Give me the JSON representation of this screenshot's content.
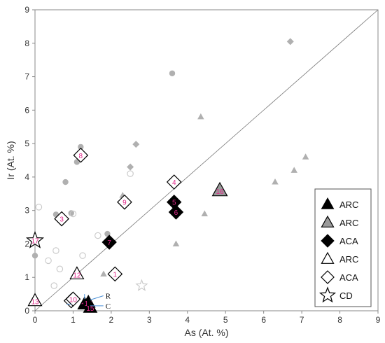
{
  "chart_data": {
    "type": "scatter",
    "xlabel": "As (At. %)",
    "ylabel": "Ir (At. %)",
    "xlim": [
      0,
      9
    ],
    "ylim": [
      0,
      9
    ],
    "xticks": [
      "0",
      "1",
      "2",
      "3",
      "4",
      "5",
      "6",
      "7",
      "8",
      "9"
    ],
    "yticks": [
      "0",
      "1",
      "2",
      "3",
      "4",
      "5",
      "6",
      "7",
      "8",
      "9"
    ],
    "grid": false,
    "reference_line": {
      "x": [
        0,
        9
      ],
      "y": [
        0,
        9
      ]
    },
    "legend": {
      "placement": "bottom-right",
      "entries": [
        {
          "label": "ARC",
          "marker": "triangle",
          "style": "filled-black"
        },
        {
          "label": "ARC",
          "marker": "triangle",
          "style": "filled-gray"
        },
        {
          "label": "ACA",
          "marker": "diamond",
          "style": "filled-black"
        },
        {
          "label": "ARC",
          "marker": "triangle",
          "style": "open"
        },
        {
          "label": "ACA",
          "marker": "diamond",
          "style": "open"
        },
        {
          "label": "CD",
          "marker": "star",
          "style": "open"
        }
      ]
    },
    "colors": {
      "black": "#000000",
      "gray_marker": "#9a9a9a",
      "light_marker": "#b0b0b0",
      "open_light": "#c8c8c8",
      "number_label": "#e0288a",
      "arrow": "#4a8fd6"
    },
    "background_points": [
      {
        "marker": "circle",
        "style": "filled",
        "x": 3.6,
        "y": 7.1
      },
      {
        "marker": "circle",
        "style": "filled",
        "x": 1.2,
        "y": 4.9
      },
      {
        "marker": "circle",
        "style": "filled",
        "x": 1.1,
        "y": 4.45
      },
      {
        "marker": "circle",
        "style": "filled",
        "x": 0.8,
        "y": 3.85
      },
      {
        "marker": "circle",
        "style": "filled",
        "x": 0.55,
        "y": 2.88
      },
      {
        "marker": "circle",
        "style": "filled",
        "x": 0.95,
        "y": 2.92
      },
      {
        "marker": "circle",
        "style": "filled",
        "x": 1.9,
        "y": 2.3
      },
      {
        "marker": "circle",
        "style": "filled",
        "x": 0.0,
        "y": 1.65
      },
      {
        "marker": "circle",
        "style": "open",
        "x": 0.1,
        "y": 3.1
      },
      {
        "marker": "circle",
        "style": "open",
        "x": 2.5,
        "y": 4.1
      },
      {
        "marker": "circle",
        "style": "open",
        "x": 1.0,
        "y": 2.9
      },
      {
        "marker": "circle",
        "style": "open",
        "x": 1.65,
        "y": 2.25
      },
      {
        "marker": "circle",
        "style": "open",
        "x": 0.55,
        "y": 1.8
      },
      {
        "marker": "circle",
        "style": "open",
        "x": 0.35,
        "y": 1.5
      },
      {
        "marker": "circle",
        "style": "open",
        "x": 0.65,
        "y": 1.25
      },
      {
        "marker": "circle",
        "style": "open",
        "x": 1.25,
        "y": 1.65
      },
      {
        "marker": "circle",
        "style": "open",
        "x": 0.5,
        "y": 0.75
      },
      {
        "marker": "diamond",
        "style": "filled",
        "x": 6.7,
        "y": 8.05
      },
      {
        "marker": "diamond",
        "style": "filled",
        "x": 2.65,
        "y": 4.98
      },
      {
        "marker": "diamond",
        "style": "filled",
        "x": 2.5,
        "y": 4.3
      },
      {
        "marker": "triangle",
        "style": "filled",
        "x": 4.35,
        "y": 5.8
      },
      {
        "marker": "triangle",
        "style": "filled",
        "x": 2.3,
        "y": 3.45
      },
      {
        "marker": "triangle",
        "style": "filled",
        "x": 6.3,
        "y": 3.85
      },
      {
        "marker": "triangle",
        "style": "filled",
        "x": 6.8,
        "y": 4.2
      },
      {
        "marker": "triangle",
        "style": "filled",
        "x": 7.1,
        "y": 4.6
      },
      {
        "marker": "triangle",
        "style": "filled",
        "x": 4.45,
        "y": 2.9
      },
      {
        "marker": "triangle",
        "style": "filled",
        "x": 3.7,
        "y": 2.0
      },
      {
        "marker": "triangle",
        "style": "filled",
        "x": 1.8,
        "y": 1.1
      },
      {
        "marker": "star",
        "style": "open",
        "x": 2.8,
        "y": 0.75
      }
    ],
    "labeled_points": [
      {
        "id": "1",
        "group": "ACA-open",
        "x": 2.1,
        "y": 1.1
      },
      {
        "id": "2",
        "group": "ACA-open",
        "x": 0.95,
        "y": 0.3
      },
      {
        "id": "3",
        "group": "ACA-open",
        "x": 0.7,
        "y": 2.75
      },
      {
        "id": "4",
        "group": "ACA-open",
        "x": 3.65,
        "y": 3.85
      },
      {
        "id": "5",
        "group": "ACA-black",
        "x": 3.65,
        "y": 3.25
      },
      {
        "id": "6",
        "group": "ACA-black",
        "x": 3.7,
        "y": 2.95
      },
      {
        "id": "7",
        "group": "ACA-black",
        "x": 1.95,
        "y": 2.05
      },
      {
        "id": "8",
        "group": "ACA-open",
        "x": 1.2,
        "y": 4.65
      },
      {
        "id": "9",
        "group": "ACA-open",
        "x": 2.35,
        "y": 3.25
      },
      {
        "id": "10",
        "group": "ACA-open",
        "x": 1.0,
        "y": 0.35
      },
      {
        "id": "11",
        "group": "ARC-black",
        "x": 1.3,
        "y": 0.2
      },
      {
        "id": "12",
        "group": "ARC-open",
        "x": 1.1,
        "y": 1.1
      },
      {
        "id": "13",
        "group": "ARC-open",
        "x": 0.0,
        "y": 0.3
      },
      {
        "id": "14",
        "group": "ARC-black",
        "x": 1.4,
        "y": 0.25
      },
      {
        "id": "15",
        "group": "ARC-black",
        "x": 1.45,
        "y": 0.1
      },
      {
        "id": "16",
        "group": "ARC-gray",
        "x": 4.85,
        "y": 3.6
      },
      {
        "id": "17",
        "group": "CD-open",
        "x": 0.0,
        "y": 2.1
      }
    ],
    "annotations": [
      {
        "text": "R",
        "x": 1.85,
        "y": 0.45
      },
      {
        "text": "C",
        "x": 1.85,
        "y": 0.15
      }
    ]
  }
}
